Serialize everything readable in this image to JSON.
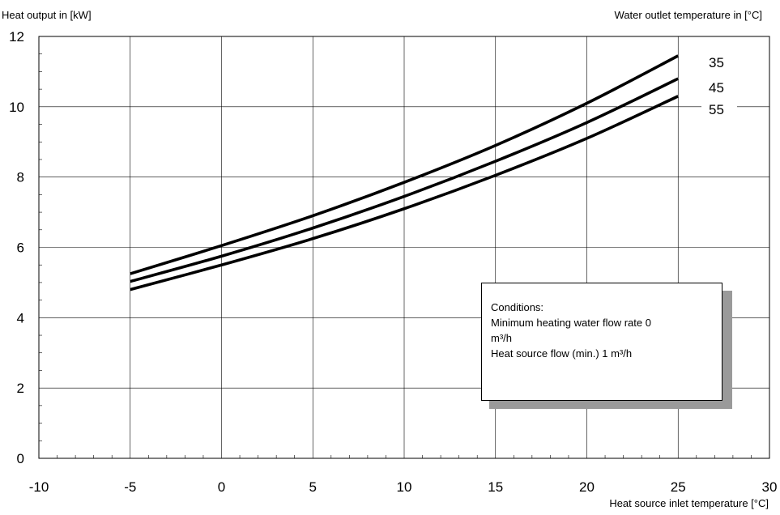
{
  "chart_data": {
    "type": "line",
    "ylabel": "Heat output in [kW]",
    "xlabel": "Heat source inlet temperature [°C]",
    "legend_title": "Water outlet temperature in [°C]",
    "xlim": [
      -10,
      30
    ],
    "ylim": [
      0,
      12
    ],
    "xticks": [
      -10,
      -5,
      0,
      5,
      10,
      15,
      20,
      25,
      30
    ],
    "yticks": [
      0,
      2,
      4,
      6,
      8,
      10,
      12
    ],
    "grid": true,
    "series": [
      {
        "name": "35",
        "x": [
          -5,
          0,
          5,
          10,
          15,
          20,
          25
        ],
        "values": [
          5.25,
          6.05,
          6.9,
          7.85,
          8.9,
          10.1,
          11.45
        ]
      },
      {
        "name": "45",
        "x": [
          -5,
          0,
          5,
          10,
          15,
          20,
          25
        ],
        "values": [
          5.03,
          5.75,
          6.55,
          7.45,
          8.45,
          9.55,
          10.8
        ]
      },
      {
        "name": "55",
        "x": [
          -5,
          0,
          5,
          10,
          15,
          20,
          25
        ],
        "values": [
          4.8,
          5.5,
          6.25,
          7.1,
          8.05,
          9.1,
          10.3
        ]
      }
    ]
  },
  "conditions": {
    "title": "Conditions:",
    "line1": "Minimum heating water flow rate 0",
    "line2": "m³/h",
    "line3": "Heat source flow (min.) 1 m³/h"
  }
}
